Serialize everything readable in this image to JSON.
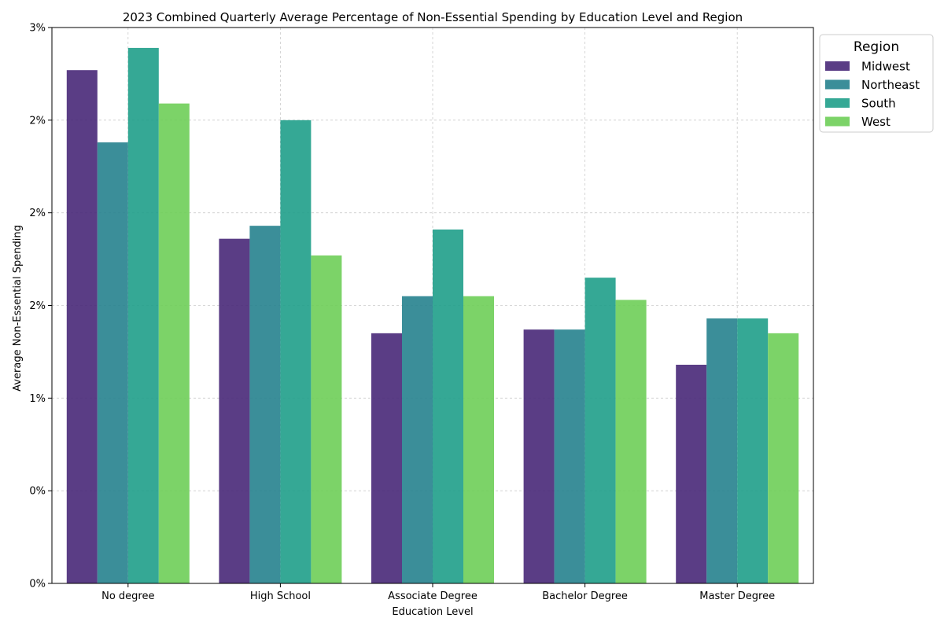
{
  "chart_data": {
    "type": "bar",
    "title": "2023 Combined Quarterly Average Percentage of Non-Essential Spending by Education Level and Region",
    "xlabel": "Education Level",
    "ylabel": "Average Non-Essential Spending",
    "categories": [
      "No degree",
      "High School",
      "Associate Degree",
      "Bachelor Degree",
      "Master Degree"
    ],
    "ylim": [
      0,
      3
    ],
    "yticks": [
      0,
      0.5,
      1.0,
      1.5,
      2.0,
      2.5,
      3.0
    ],
    "ytick_labels": [
      "0%",
      "0%",
      "1%",
      "2%",
      "2%",
      "2%",
      "3%"
    ],
    "grid": true,
    "legend": {
      "title": "Region",
      "position": "outside-top-right"
    },
    "series": [
      {
        "name": "Midwest",
        "color": "#482878",
        "values": [
          2.77,
          1.86,
          1.35,
          1.37,
          1.18
        ]
      },
      {
        "name": "Northeast",
        "color": "#26828e",
        "values": [
          2.38,
          1.93,
          1.55,
          1.37,
          1.43
        ]
      },
      {
        "name": "South",
        "color": "#1f9e89",
        "values": [
          2.89,
          2.5,
          1.91,
          1.65,
          1.43
        ]
      },
      {
        "name": "West",
        "color": "#6ece58",
        "values": [
          2.59,
          1.77,
          1.55,
          1.53,
          1.35
        ]
      }
    ]
  }
}
